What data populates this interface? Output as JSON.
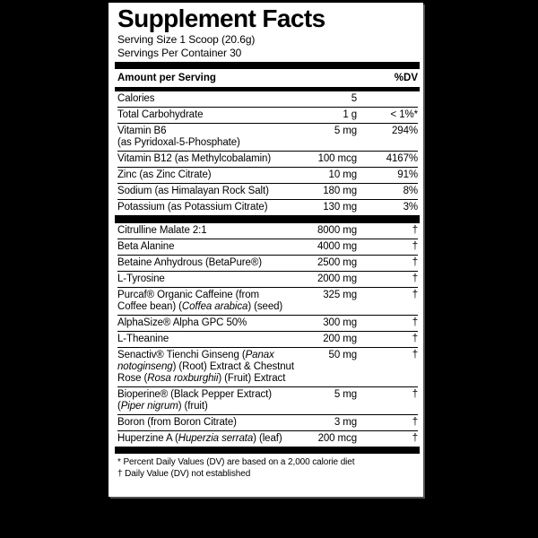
{
  "label": {
    "title": "Supplement Facts",
    "serving_size": "Serving Size 1 Scoop (20.6g)",
    "servings_per_container": "Servings Per Container 30",
    "columns": {
      "amount_header": "Amount per Serving",
      "dv_header": "%DV"
    },
    "rows": [
      {
        "lines": [
          [
            {
              "t": "Calories"
            }
          ]
        ],
        "amount": "5",
        "dv": ""
      },
      {
        "lines": [
          [
            {
              "t": "Total Carbohydrate"
            }
          ]
        ],
        "amount": "1 g",
        "dv": "< 1%*"
      },
      {
        "lines": [
          [
            {
              "t": "Vitamin B6"
            }
          ],
          [
            {
              "t": "(as Pyridoxal-5-Phosphate)"
            }
          ]
        ],
        "amount": "5 mg",
        "dv": "294%"
      },
      {
        "lines": [
          [
            {
              "t": "Vitamin B12 (as Methylcobalamin)"
            }
          ]
        ],
        "amount": "100 mcg",
        "dv": "4167%"
      },
      {
        "lines": [
          [
            {
              "t": "Zinc (as Zinc Citrate)"
            }
          ]
        ],
        "amount": "10 mg",
        "dv": "91%"
      },
      {
        "lines": [
          [
            {
              "t": "Sodium (as Himalayan Rock Salt)"
            }
          ]
        ],
        "amount": "180 mg",
        "dv": "8%"
      },
      {
        "lines": [
          [
            {
              "t": "Potassium (as Potassium Citrate)"
            }
          ]
        ],
        "amount": "130 mg",
        "dv": "3%"
      },
      {
        "bar_before": true,
        "lines": [
          [
            {
              "t": "Citrulline Malate 2:1"
            }
          ]
        ],
        "amount": "8000 mg",
        "dv": "†"
      },
      {
        "lines": [
          [
            {
              "t": "Beta Alanine"
            }
          ]
        ],
        "amount": "4000 mg",
        "dv": "†"
      },
      {
        "lines": [
          [
            {
              "t": "Betaine Anhydrous (BetaPure®)"
            }
          ]
        ],
        "amount": "2500 mg",
        "dv": "†"
      },
      {
        "lines": [
          [
            {
              "t": "L-Tyrosine"
            }
          ]
        ],
        "amount": "2000 mg",
        "dv": "†"
      },
      {
        "lines": [
          [
            {
              "t": "Purcaf® Organic Caffeine (from"
            }
          ],
          [
            {
              "t": "Coffee bean) ("
            },
            {
              "t": "Coffea arabica",
              "i": true
            },
            {
              "t": ") (seed)"
            }
          ]
        ],
        "amount": "325 mg",
        "dv": "†"
      },
      {
        "lines": [
          [
            {
              "t": "AlphaSize® Alpha GPC 50%"
            }
          ]
        ],
        "amount": "300 mg",
        "dv": "†"
      },
      {
        "lines": [
          [
            {
              "t": "L-Theanine"
            }
          ]
        ],
        "amount": "200 mg",
        "dv": "†"
      },
      {
        "lines": [
          [
            {
              "t": "Senactiv® Tienchi Ginseng ("
            },
            {
              "t": "Panax",
              "i": true
            }
          ],
          [
            {
              "t": "notoginseng",
              "i": true
            },
            {
              "t": ") (Root) Extract & Chestnut"
            }
          ],
          [
            {
              "t": "Rose ("
            },
            {
              "t": "Rosa roxburghii",
              "i": true
            },
            {
              "t": ") (Fruit) Extract"
            }
          ]
        ],
        "amount": "50 mg",
        "dv": "†"
      },
      {
        "lines": [
          [
            {
              "t": "Bioperine® (Black Pepper Extract)"
            }
          ],
          [
            {
              "t": "("
            },
            {
              "t": "Piper nigrum",
              "i": true
            },
            {
              "t": ") (fruit)"
            }
          ]
        ],
        "amount": "5 mg",
        "dv": "†"
      },
      {
        "lines": [
          [
            {
              "t": "Boron (from Boron Citrate)"
            }
          ]
        ],
        "amount": "3 mg",
        "dv": "†"
      },
      {
        "lines": [
          [
            {
              "t": "Huperzine A ("
            },
            {
              "t": "Huperzia serrata",
              "i": true
            },
            {
              "t": ") (leaf)"
            }
          ]
        ],
        "amount": "200 mcg",
        "dv": "†"
      }
    ],
    "footnotes": [
      "* Percent Daily Values (DV) are based on a 2,000 calorie diet",
      "† Daily Value (DV) not established"
    ],
    "colors": {
      "background": "#000000",
      "panel": "#ffffff",
      "text": "#000000"
    }
  }
}
